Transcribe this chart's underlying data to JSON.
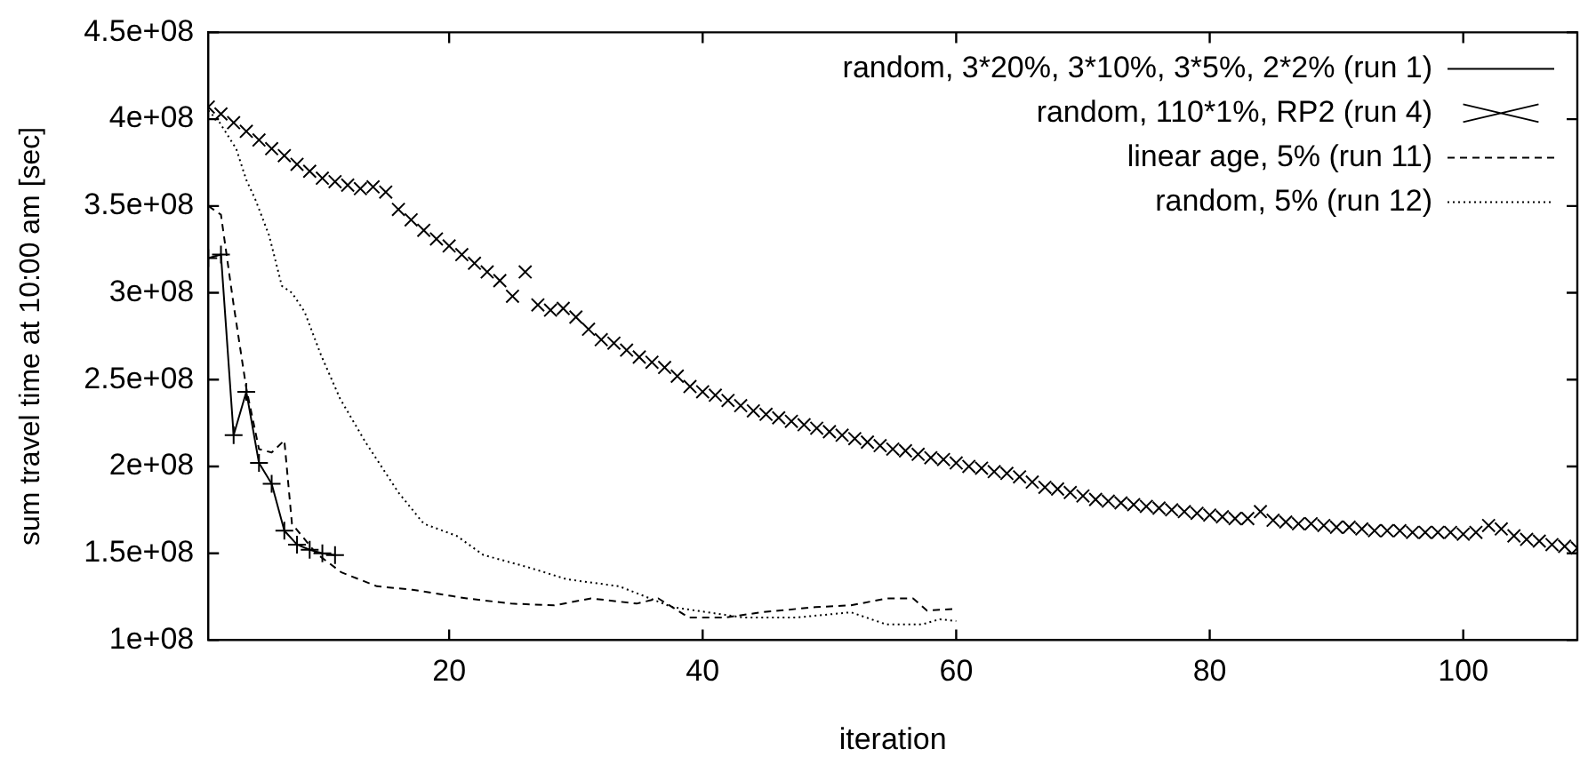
{
  "chart_data": {
    "type": "line",
    "xlabel": "iteration",
    "ylabel": "sum travel time at 10:00 am [sec]",
    "xlim": [
      1,
      109
    ],
    "xticks": [
      20,
      40,
      60,
      80,
      100
    ],
    "ylim": [
      100000000.0,
      450000000.0
    ],
    "yticks": [
      {
        "value": 100000000.0,
        "label": "1e+08"
      },
      {
        "value": 150000000.0,
        "label": "1.5e+08"
      },
      {
        "value": 200000000.0,
        "label": "2e+08"
      },
      {
        "value": 250000000.0,
        "label": "2.5e+08"
      },
      {
        "value": 300000000.0,
        "label": "3e+08"
      },
      {
        "value": 350000000.0,
        "label": "3.5e+08"
      },
      {
        "value": 400000000.0,
        "label": "4e+08"
      },
      {
        "value": 450000000.0,
        "label": "4.5e+08"
      }
    ],
    "grid": false,
    "legend": "top right",
    "series": [
      {
        "name": "random, 3*20%, 3*10%, 3*5%, 2*2% (run 1)",
        "type": "line",
        "color": "#000000",
        "marker": "cross",
        "line_style": "solid",
        "x": [
          1,
          2,
          3,
          4,
          5,
          6,
          7,
          8,
          9,
          10,
          11
        ],
        "values": [
          320000000.0,
          322000000.0,
          218000000.0,
          243000000.0,
          202000000.0,
          190000000.0,
          163000000.0,
          155000000.0,
          152000000.0,
          150000000.0,
          149000000.0
        ]
      },
      {
        "name": "random, 110*1%, RP2 (run 4)",
        "type": "scatter",
        "color": "#000000",
        "marker": "cross",
        "x": [
          1,
          2,
          3,
          4,
          5,
          6,
          7,
          8,
          9,
          10,
          11,
          12,
          13,
          14,
          15,
          16,
          17,
          18,
          19,
          20,
          21,
          22,
          23,
          24,
          25,
          26,
          27,
          28,
          29,
          30,
          31,
          32,
          33,
          34,
          35,
          36,
          37,
          38,
          39,
          40,
          41,
          42,
          43,
          44,
          45,
          46,
          47,
          48,
          49,
          50,
          51,
          52,
          53,
          54,
          55,
          56,
          57,
          58,
          59,
          60,
          61,
          62,
          63,
          64,
          65,
          66,
          67,
          68,
          69,
          70,
          71,
          72,
          73,
          74,
          75,
          76,
          77,
          78,
          79,
          80,
          81,
          82,
          83,
          84,
          85,
          86,
          87,
          88,
          89,
          90,
          91,
          92,
          93,
          94,
          95,
          96,
          97,
          98,
          99,
          100,
          101,
          102,
          103,
          104,
          105,
          106,
          107,
          108,
          109
        ],
        "values": [
          407000000.0,
          403000000.0,
          398000000.0,
          393000000.0,
          388000000.0,
          383000000.0,
          379000000.0,
          374000000.0,
          370000000.0,
          366000000.0,
          364000000.0,
          362000000.0,
          360000000.0,
          361000000.0,
          358000000.0,
          348000000.0,
          342000000.0,
          336000000.0,
          331000000.0,
          327000000.0,
          322000000.0,
          317000000.0,
          312000000.0,
          307000000.0,
          298000000.0,
          312000000.0,
          293000000.0,
          290000000.0,
          291000000.0,
          286000000.0,
          279000000.0,
          273000000.0,
          271000000.0,
          267000000.0,
          263000000.0,
          260000000.0,
          257000000.0,
          252000000.0,
          246000000.0,
          243000000.0,
          241000000.0,
          238000000.0,
          235000000.0,
          232000000.0,
          230000000.0,
          228000000.0,
          226000000.0,
          224000000.0,
          222000000.0,
          220000000.0,
          218000000.0,
          216000000.0,
          214000000.0,
          212000000.0,
          210000000.0,
          209000000.0,
          207000000.0,
          205000000.0,
          204000000.0,
          202000000.0,
          200000000.0,
          199000000.0,
          197000000.0,
          196000000.0,
          194000000.0,
          191000000.0,
          188000000.0,
          187000000.0,
          185000000.0,
          183000000.0,
          181000000.0,
          180000000.0,
          179000000.0,
          178000000.0,
          177000000.0,
          176000000.0,
          175000000.0,
          174000000.0,
          173000000.0,
          172000000.0,
          171000000.0,
          170000000.0,
          170000000.0,
          174000000.0,
          169000000.0,
          168000000.0,
          167000000.0,
          167000000.0,
          166000000.0,
          165000000.0,
          165000000.0,
          164000000.0,
          163000000.0,
          163000000.0,
          163000000.0,
          162000000.0,
          162000000.0,
          162000000.0,
          162000000.0,
          161000000.0,
          162000000.0,
          166000000.0,
          164000000.0,
          160000000.0,
          158000000.0,
          157000000.0,
          155000000.0,
          154000000.0,
          153000000.0
        ]
      },
      {
        "name": "linear age, 5% (run 11)",
        "type": "line",
        "color": "#000000",
        "marker": "none",
        "line_style": "dashed",
        "x": [
          1,
          2,
          3,
          4,
          5,
          6,
          7,
          7.6,
          8.5,
          9.5,
          11.5,
          14.3,
          17.1,
          21.4,
          24.9,
          28.3,
          31.2,
          34.8,
          36.5,
          38.9,
          41.8,
          44.6,
          48.9,
          51.7,
          54.5,
          56.6,
          57.7,
          60
        ],
        "values": [
          350000000.0,
          345000000.0,
          293000000.0,
          245000000.0,
          210000000.0,
          208000000.0,
          215000000.0,
          167000000.0,
          159000000.0,
          150000000.0,
          139000000.0,
          131000000.0,
          129000000.0,
          124000000.0,
          121000000.0,
          120000000.0,
          124000000.0,
          121000000.0,
          124000000.0,
          113000000.0,
          113000000.0,
          116000000.0,
          119000000.0,
          120000000.0,
          124000000.0,
          124000000.0,
          117000000.0,
          118000000.0
        ]
      },
      {
        "name": "random, 5% (run 12)",
        "type": "line",
        "color": "#000000",
        "marker": "none",
        "line_style": "dotted",
        "x": [
          1,
          1.9,
          3.2,
          4,
          4.7,
          5.8,
          6.8,
          7.6,
          8.6,
          9.9,
          11.4,
          13.4,
          16,
          18,
          20.6,
          22.7,
          26.2,
          29.3,
          33.4,
          37.6,
          40.4,
          43.2,
          47.4,
          51.7,
          54.5,
          57.3,
          58.7,
          60
        ],
        "values": [
          405000000.0,
          398000000.0,
          383000000.0,
          365000000.0,
          354000000.0,
          333000000.0,
          304000000.0,
          300000000.0,
          289000000.0,
          264000000.0,
          239000000.0,
          214000000.0,
          185000000.0,
          167000000.0,
          160000000.0,
          149000000.0,
          142000000.0,
          135000000.0,
          131000000.0,
          119000000.0,
          116000000.0,
          113000000.0,
          113000000.0,
          116000000.0,
          109000000.0,
          109000000.0,
          112000000.0,
          111000000.0
        ]
      }
    ]
  }
}
